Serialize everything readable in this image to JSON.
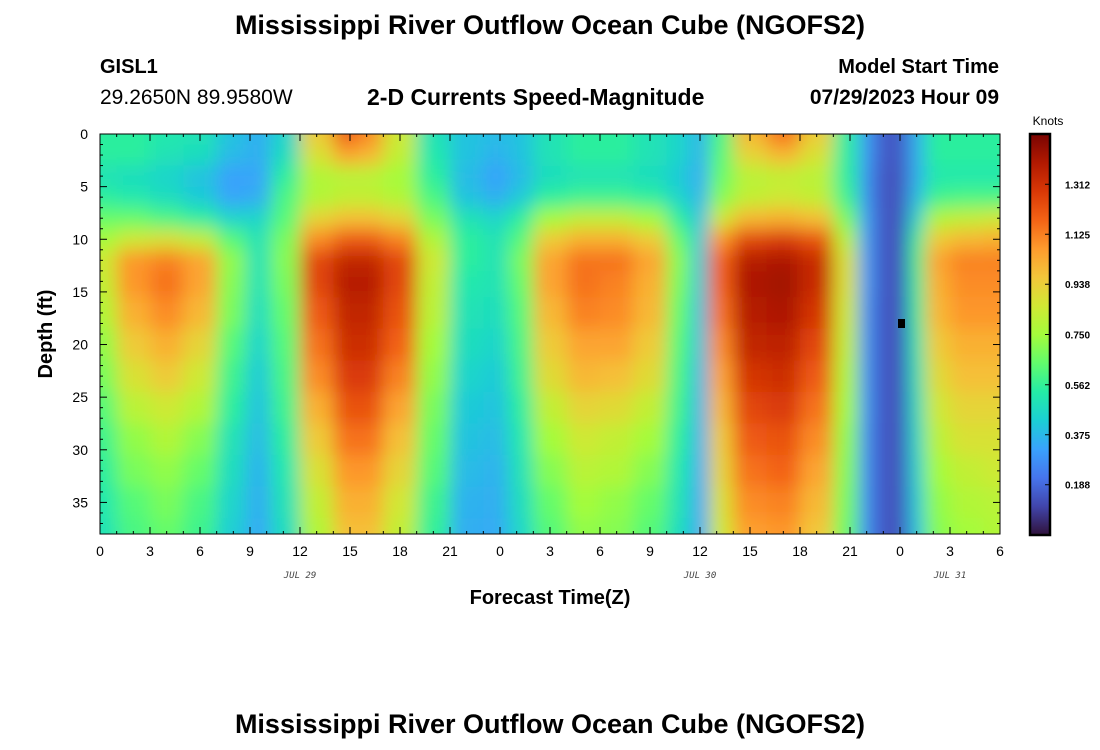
{
  "page": {
    "title": "Mississippi River Outflow Ocean Cube (NGOFS2)",
    "footer_title": "Mississippi River Outflow Ocean Cube (NGOFS2)"
  },
  "station": {
    "id": "GISL1",
    "coords": "29.2650N  89.9580W"
  },
  "model_start": {
    "label": "Model Start Time",
    "value": "07/29/2023 Hour 09"
  },
  "chart_data": {
    "type": "heatmap",
    "title": "2-D Currents Speed-Magnitude",
    "xlabel": "Forecast Time(Z)",
    "ylabel": "Depth (ft)",
    "x_range_hours": [
      0,
      54
    ],
    "y_range_ft": [
      0,
      38
    ],
    "x_ticks": [
      {
        "hour": 0,
        "label": "0"
      },
      {
        "hour": 3,
        "label": "3"
      },
      {
        "hour": 6,
        "label": "6"
      },
      {
        "hour": 9,
        "label": "9"
      },
      {
        "hour": 12,
        "label": "12"
      },
      {
        "hour": 15,
        "label": "15"
      },
      {
        "hour": 18,
        "label": "18"
      },
      {
        "hour": 21,
        "label": "21"
      },
      {
        "hour": 24,
        "label": "0"
      },
      {
        "hour": 27,
        "label": "3"
      },
      {
        "hour": 30,
        "label": "6"
      },
      {
        "hour": 33,
        "label": "9"
      },
      {
        "hour": 36,
        "label": "12"
      },
      {
        "hour": 39,
        "label": "15"
      },
      {
        "hour": 42,
        "label": "18"
      },
      {
        "hour": 45,
        "label": "21"
      },
      {
        "hour": 48,
        "label": "0"
      },
      {
        "hour": 51,
        "label": "3"
      },
      {
        "hour": 54,
        "label": "6"
      }
    ],
    "date_labels": [
      {
        "hour": 12,
        "label": "JUL 29"
      },
      {
        "hour": 36,
        "label": "JUL 30"
      },
      {
        "hour": 51,
        "label": "JUL 31"
      }
    ],
    "y_ticks": [
      0,
      5,
      10,
      15,
      20,
      25,
      30,
      35
    ],
    "colorbar": {
      "unit": "Knots",
      "min": 0.0,
      "max": 1.5,
      "ticks": [
        "1.312",
        "1.125",
        "0.938",
        "0.750",
        "0.562",
        "0.375",
        "0.188"
      ],
      "colors": [
        "#30123b",
        "#4145ab",
        "#4675ed",
        "#39a2fc",
        "#1bcfd4",
        "#24eca6",
        "#61fc6c",
        "#a4fc3b",
        "#d1e834",
        "#f3c63a",
        "#fe9b2d",
        "#f36315",
        "#d93806",
        "#b11901",
        "#7a0402"
      ]
    },
    "depth_rows": [
      0,
      2,
      4,
      6,
      8,
      10,
      12,
      14,
      17,
      20,
      23,
      26,
      29,
      32,
      35,
      38
    ],
    "time_columns": [
      0,
      2,
      4,
      6,
      8,
      9.5,
      11,
      13,
      15,
      16,
      18,
      20,
      22,
      24,
      25,
      27,
      29,
      31,
      33,
      35,
      36,
      37,
      39,
      41,
      43,
      45,
      46,
      47,
      48,
      49,
      50,
      52,
      54
    ],
    "speed_knots": [
      [
        0.55,
        0.55,
        0.52,
        0.5,
        0.4,
        0.35,
        0.45,
        0.95,
        1.2,
        1.1,
        0.85,
        0.5,
        0.4,
        0.38,
        0.4,
        0.5,
        0.55,
        0.55,
        0.5,
        0.45,
        0.35,
        0.6,
        1.0,
        1.15,
        0.95,
        0.55,
        0.3,
        0.15,
        0.15,
        0.35,
        0.55,
        0.55,
        0.55
      ],
      [
        0.55,
        0.55,
        0.5,
        0.48,
        0.38,
        0.35,
        0.48,
        0.88,
        1.05,
        1.0,
        0.82,
        0.52,
        0.4,
        0.36,
        0.4,
        0.5,
        0.55,
        0.55,
        0.5,
        0.45,
        0.35,
        0.62,
        0.92,
        1.0,
        0.88,
        0.55,
        0.3,
        0.15,
        0.15,
        0.35,
        0.55,
        0.55,
        0.55
      ],
      [
        0.5,
        0.48,
        0.45,
        0.4,
        0.32,
        0.33,
        0.55,
        0.78,
        0.8,
        0.8,
        0.75,
        0.55,
        0.38,
        0.32,
        0.38,
        0.48,
        0.5,
        0.5,
        0.48,
        0.42,
        0.33,
        0.65,
        0.8,
        0.82,
        0.8,
        0.55,
        0.28,
        0.14,
        0.14,
        0.35,
        0.52,
        0.52,
        0.52
      ],
      [
        0.55,
        0.52,
        0.48,
        0.42,
        0.33,
        0.35,
        0.6,
        0.78,
        0.82,
        0.82,
        0.78,
        0.6,
        0.4,
        0.35,
        0.42,
        0.55,
        0.58,
        0.58,
        0.55,
        0.45,
        0.35,
        0.7,
        0.82,
        0.85,
        0.82,
        0.58,
        0.28,
        0.14,
        0.14,
        0.38,
        0.58,
        0.6,
        0.6
      ],
      [
        0.65,
        0.65,
        0.6,
        0.55,
        0.45,
        0.45,
        0.62,
        0.92,
        0.98,
        0.98,
        0.92,
        0.68,
        0.5,
        0.45,
        0.55,
        0.75,
        0.82,
        0.82,
        0.75,
        0.55,
        0.38,
        0.85,
        1.0,
        1.02,
        0.98,
        0.68,
        0.3,
        0.14,
        0.14,
        0.45,
        0.78,
        0.82,
        0.85
      ],
      [
        0.75,
        0.85,
        0.88,
        0.82,
        0.62,
        0.5,
        0.68,
        1.1,
        1.2,
        1.2,
        1.12,
        0.78,
        0.55,
        0.5,
        0.62,
        0.95,
        1.02,
        1.02,
        0.95,
        0.65,
        0.4,
        1.08,
        1.25,
        1.28,
        1.22,
        0.8,
        0.3,
        0.14,
        0.14,
        0.55,
        0.95,
        1.0,
        1.02
      ],
      [
        0.85,
        1.08,
        1.12,
        1.05,
        0.72,
        0.5,
        0.7,
        1.25,
        1.35,
        1.35,
        1.25,
        0.85,
        0.55,
        0.5,
        0.68,
        1.05,
        1.15,
        1.15,
        1.05,
        0.7,
        0.4,
        1.18,
        1.38,
        1.4,
        1.33,
        0.88,
        0.3,
        0.14,
        0.14,
        0.58,
        1.05,
        1.12,
        1.12
      ],
      [
        0.82,
        1.08,
        1.15,
        1.05,
        0.7,
        0.5,
        0.68,
        1.25,
        1.38,
        1.38,
        1.25,
        0.82,
        0.52,
        0.5,
        0.65,
        1.05,
        1.15,
        1.12,
        1.02,
        0.68,
        0.4,
        1.18,
        1.4,
        1.42,
        1.33,
        0.88,
        0.3,
        0.14,
        0.14,
        0.56,
        1.02,
        1.1,
        1.1
      ],
      [
        0.78,
        1.02,
        1.1,
        1.0,
        0.68,
        0.48,
        0.65,
        1.2,
        1.35,
        1.35,
        1.22,
        0.8,
        0.5,
        0.48,
        0.62,
        1.0,
        1.12,
        1.1,
        1.0,
        0.65,
        0.38,
        1.15,
        1.38,
        1.4,
        1.3,
        0.85,
        0.28,
        0.14,
        0.14,
        0.55,
        1.0,
        1.08,
        1.08
      ],
      [
        0.72,
        0.95,
        1.02,
        0.92,
        0.62,
        0.45,
        0.62,
        1.15,
        1.32,
        1.32,
        1.18,
        0.75,
        0.48,
        0.45,
        0.6,
        0.95,
        1.05,
        1.05,
        0.95,
        0.62,
        0.38,
        1.1,
        1.35,
        1.36,
        1.25,
        0.82,
        0.28,
        0.14,
        0.14,
        0.52,
        0.95,
        1.02,
        1.02
      ],
      [
        0.68,
        0.88,
        0.95,
        0.85,
        0.58,
        0.42,
        0.6,
        1.1,
        1.28,
        1.28,
        1.12,
        0.72,
        0.45,
        0.42,
        0.58,
        0.9,
        1.0,
        0.98,
        0.9,
        0.6,
        0.36,
        1.05,
        1.3,
        1.32,
        1.2,
        0.78,
        0.28,
        0.14,
        0.14,
        0.5,
        0.9,
        0.98,
        0.98
      ],
      [
        0.62,
        0.8,
        0.85,
        0.78,
        0.55,
        0.4,
        0.58,
        1.02,
        1.22,
        1.22,
        1.05,
        0.68,
        0.42,
        0.4,
        0.55,
        0.82,
        0.92,
        0.9,
        0.82,
        0.58,
        0.35,
        1.0,
        1.25,
        1.28,
        1.15,
        0.75,
        0.28,
        0.14,
        0.14,
        0.48,
        0.85,
        0.92,
        0.92
      ],
      [
        0.58,
        0.72,
        0.78,
        0.7,
        0.5,
        0.38,
        0.55,
        0.95,
        1.15,
        1.15,
        0.98,
        0.65,
        0.4,
        0.38,
        0.52,
        0.75,
        0.85,
        0.82,
        0.75,
        0.55,
        0.34,
        0.95,
        1.2,
        1.22,
        1.1,
        0.72,
        0.27,
        0.14,
        0.14,
        0.46,
        0.8,
        0.88,
        0.88
      ],
      [
        0.55,
        0.68,
        0.72,
        0.65,
        0.48,
        0.36,
        0.52,
        0.88,
        1.08,
        1.08,
        0.92,
        0.62,
        0.38,
        0.36,
        0.5,
        0.7,
        0.8,
        0.78,
        0.7,
        0.52,
        0.33,
        0.92,
        1.15,
        1.18,
        1.05,
        0.7,
        0.27,
        0.14,
        0.14,
        0.44,
        0.75,
        0.82,
        0.85
      ],
      [
        0.52,
        0.62,
        0.68,
        0.6,
        0.45,
        0.35,
        0.5,
        0.82,
        1.02,
        1.02,
        0.86,
        0.58,
        0.36,
        0.35,
        0.48,
        0.65,
        0.75,
        0.72,
        0.65,
        0.5,
        0.32,
        0.88,
        1.1,
        1.12,
        1.0,
        0.68,
        0.27,
        0.14,
        0.14,
        0.42,
        0.72,
        0.78,
        0.8
      ],
      [
        0.5,
        0.6,
        0.65,
        0.58,
        0.43,
        0.34,
        0.48,
        0.78,
        0.98,
        0.98,
        0.82,
        0.56,
        0.35,
        0.34,
        0.46,
        0.62,
        0.72,
        0.7,
        0.62,
        0.48,
        0.32,
        0.85,
        1.06,
        1.08,
        0.96,
        0.66,
        0.27,
        0.14,
        0.14,
        0.4,
        0.7,
        0.75,
        0.78
      ]
    ]
  }
}
